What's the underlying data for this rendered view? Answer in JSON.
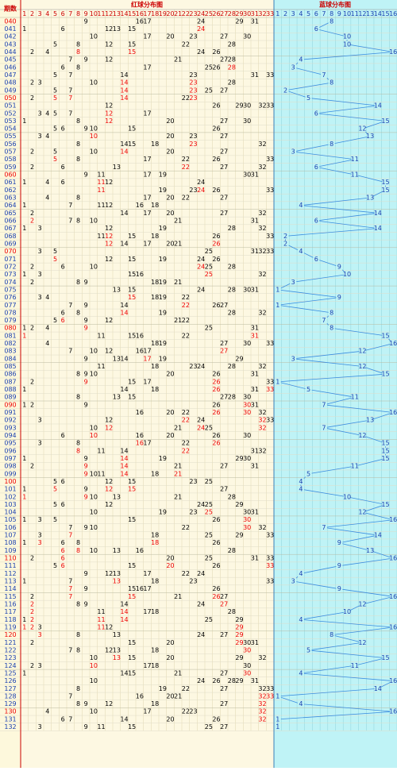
{
  "header": {
    "period_label": "期数",
    "red_title": "红球分布图",
    "blue_title": "蓝球分布图",
    "red_columns": [
      1,
      2,
      3,
      4,
      5,
      6,
      7,
      8,
      9,
      10,
      11,
      12,
      13,
      14,
      15,
      16,
      17,
      18,
      19,
      20,
      21,
      22,
      23,
      24,
      25,
      26,
      27,
      28,
      29,
      30,
      31,
      32,
      33
    ],
    "blue_columns": [
      1,
      2,
      3,
      4,
      5,
      6,
      7,
      8,
      9,
      10,
      11,
      12,
      13,
      14,
      15,
      16
    ]
  },
  "draws": [
    {
      "period": "040",
      "red": [
        9,
        16,
        17,
        24,
        29,
        31
      ],
      "blue": 8
    },
    {
      "period": "041",
      "red": [
        1,
        6,
        12,
        13,
        15,
        24
      ],
      "blue": 6
    },
    {
      "period": "042",
      "red": [
        10,
        17,
        20,
        23,
        27,
        30
      ],
      "blue": 10
    },
    {
      "period": "043",
      "red": [
        5,
        8,
        12,
        15,
        22,
        28
      ],
      "blue": 10
    },
    {
      "period": "044",
      "red": [
        2,
        4,
        8,
        15,
        24,
        26
      ],
      "blue": 16
    },
    {
      "period": "045",
      "red": [
        7,
        9,
        12,
        21,
        27,
        28
      ],
      "blue": 4
    },
    {
      "period": "046",
      "red": [
        6,
        8,
        17,
        25,
        26,
        28
      ],
      "blue": 3
    },
    {
      "period": "047",
      "red": [
        5,
        7,
        14,
        23,
        31,
        33
      ],
      "blue": 7
    },
    {
      "period": "048",
      "red": [
        2,
        3,
        10,
        14,
        23,
        28
      ],
      "blue": 8
    },
    {
      "period": "049",
      "red": [
        5,
        7,
        14,
        23,
        25,
        27
      ],
      "blue": 2
    },
    {
      "period": "050",
      "red": [
        2,
        5,
        7,
        14,
        22,
        23
      ],
      "blue": 5
    },
    {
      "period": "051",
      "red": [
        12,
        26,
        29,
        30,
        32,
        33
      ],
      "blue": 14
    },
    {
      "period": "052",
      "red": [
        3,
        4,
        5,
        7,
        12,
        17
      ],
      "blue": 6
    },
    {
      "period": "053",
      "red": [
        1,
        8,
        12,
        20,
        27,
        30
      ],
      "blue": 15
    },
    {
      "period": "054",
      "red": [
        5,
        6,
        9,
        10,
        15,
        26
      ],
      "blue": 12
    },
    {
      "period": "055",
      "red": [
        3,
        4,
        10,
        20,
        23,
        27
      ],
      "blue": 13
    },
    {
      "period": "056",
      "red": [
        8,
        14,
        15,
        18,
        23,
        32
      ],
      "blue": 8
    },
    {
      "period": "057",
      "red": [
        2,
        5,
        10,
        14,
        20,
        27
      ],
      "blue": 3
    },
    {
      "period": "058",
      "red": [
        5,
        8,
        17,
        22,
        26,
        33
      ],
      "blue": 11
    },
    {
      "period": "059",
      "red": [
        2,
        6,
        13,
        22,
        27,
        32
      ],
      "blue": 6
    },
    {
      "period": "060",
      "red": [
        9,
        11,
        17,
        19,
        30,
        31
      ],
      "blue": 11
    },
    {
      "period": "061",
      "red": [
        1,
        4,
        6,
        11,
        12,
        24
      ],
      "blue": 15
    },
    {
      "period": "062",
      "red": [
        11,
        19,
        23,
        24,
        26,
        33
      ],
      "blue": 15
    },
    {
      "period": "063",
      "red": [
        4,
        8,
        17,
        20,
        22,
        27
      ],
      "blue": 13
    },
    {
      "period": "064",
      "red": [
        1,
        7,
        11,
        12,
        16,
        18
      ],
      "blue": 4
    },
    {
      "period": "065",
      "red": [
        2,
        14,
        17,
        20,
        27,
        32
      ],
      "blue": 14
    },
    {
      "period": "066",
      "red": [
        2,
        7,
        8,
        10,
        21,
        31
      ],
      "blue": 6
    },
    {
      "period": "067",
      "red": [
        1,
        3,
        12,
        19,
        28,
        32
      ],
      "blue": 14
    },
    {
      "period": "068",
      "red": [
        11,
        12,
        15,
        18,
        26,
        33
      ],
      "blue": 2
    },
    {
      "period": "069",
      "red": [
        12,
        14,
        17,
        20,
        21,
        26
      ],
      "blue": 2
    },
    {
      "period": "070",
      "red": [
        3,
        5,
        25,
        31,
        32,
        33
      ],
      "blue": 4
    },
    {
      "period": "071",
      "red": [
        5,
        12,
        15,
        19,
        24,
        26
      ],
      "blue": 6
    },
    {
      "period": "072",
      "red": [
        2,
        6,
        10,
        24,
        25,
        28
      ],
      "blue": 9
    },
    {
      "period": "073",
      "red": [
        1,
        3,
        15,
        16,
        25,
        32
      ],
      "blue": 10
    },
    {
      "period": "074",
      "red": [
        2,
        8,
        9,
        18,
        19,
        21
      ],
      "blue": 3
    },
    {
      "period": "075",
      "red": [
        13,
        15,
        24,
        28,
        30,
        31
      ],
      "blue": 1
    },
    {
      "period": "076",
      "red": [
        3,
        4,
        15,
        18,
        19,
        22
      ],
      "blue": 9
    },
    {
      "period": "077",
      "red": [
        7,
        9,
        14,
        22,
        26,
        27
      ],
      "blue": 1
    },
    {
      "period": "078",
      "red": [
        6,
        8,
        14,
        19,
        28,
        32
      ],
      "blue": 8
    },
    {
      "period": "079",
      "red": [
        5,
        6,
        9,
        12,
        21,
        22
      ],
      "blue": 7
    },
    {
      "period": "080",
      "red": [
        1,
        2,
        4,
        9,
        25,
        31
      ],
      "blue": 8
    },
    {
      "period": "081",
      "red": [
        1,
        11,
        15,
        16,
        22,
        31
      ],
      "blue": 15
    },
    {
      "period": "082",
      "red": [
        4,
        18,
        19,
        27,
        30,
        33
      ],
      "blue": 16
    },
    {
      "period": "083",
      "red": [
        7,
        10,
        12,
        16,
        17,
        27
      ],
      "blue": 12
    },
    {
      "period": "084",
      "red": [
        9,
        13,
        14,
        17,
        19,
        29
      ],
      "blue": 3
    },
    {
      "period": "085",
      "red": [
        11,
        18,
        23,
        24,
        28,
        32
      ],
      "blue": 12
    },
    {
      "period": "086",
      "red": [
        8,
        9,
        10,
        20,
        26,
        31
      ],
      "blue": 15
    },
    {
      "period": "087",
      "red": [
        2,
        9,
        15,
        17,
        26,
        33
      ],
      "blue": 1
    },
    {
      "period": "088",
      "red": [
        1,
        14,
        18,
        26,
        31,
        33
      ],
      "blue": 5
    },
    {
      "period": "089",
      "red": [
        8,
        13,
        15,
        27,
        28,
        30
      ],
      "blue": 11
    },
    {
      "period": "090",
      "red": [
        1,
        2,
        9,
        26,
        30,
        31
      ],
      "blue": 7
    },
    {
      "period": "091",
      "red": [
        16,
        20,
        22,
        26,
        30,
        32
      ],
      "blue": 16
    },
    {
      "period": "092",
      "red": [
        3,
        12,
        22,
        24,
        32,
        33
      ],
      "blue": 13
    },
    {
      "period": "093",
      "red": [
        10,
        12,
        21,
        24,
        25,
        32
      ],
      "blue": 7
    },
    {
      "period": "094",
      "red": [
        6,
        10,
        16,
        20,
        26,
        30
      ],
      "blue": 12
    },
    {
      "period": "095",
      "red": [
        3,
        8,
        16,
        17,
        22,
        26
      ],
      "blue": 15
    },
    {
      "period": "096",
      "red": [
        8,
        11,
        14,
        22,
        31,
        32
      ],
      "blue": 15
    },
    {
      "period": "097",
      "red": [
        1,
        9,
        14,
        19,
        29,
        30
      ],
      "blue": 15
    },
    {
      "period": "098",
      "red": [
        2,
        9,
        14,
        21,
        27,
        31
      ],
      "blue": 11
    },
    {
      "period": "099",
      "red": [
        9,
        10,
        11,
        14,
        18,
        21
      ],
      "blue": 5
    },
    {
      "period": "100",
      "red": [
        5,
        6,
        12,
        15,
        23,
        25
      ],
      "blue": 4
    },
    {
      "period": "101",
      "red": [
        1,
        5,
        9,
        12,
        15,
        27
      ],
      "blue": 4
    },
    {
      "period": "102",
      "red": [
        1,
        9,
        10,
        13,
        21,
        28
      ],
      "blue": 10
    },
    {
      "period": "103",
      "red": [
        5,
        6,
        12,
        24,
        25,
        29
      ],
      "blue": 15
    },
    {
      "period": "104",
      "red": [
        10,
        19,
        23,
        25,
        30,
        31
      ],
      "blue": 12
    },
    {
      "period": "105",
      "red": [
        1,
        3,
        5,
        15,
        26,
        30
      ],
      "blue": 16
    },
    {
      "period": "106",
      "red": [
        7,
        9,
        10,
        22,
        30,
        32
      ],
      "blue": 7
    },
    {
      "period": "107",
      "red": [
        3,
        7,
        18,
        25,
        29,
        33
      ],
      "blue": 14
    },
    {
      "period": "108",
      "red": [
        1,
        3,
        6,
        8,
        18,
        26
      ],
      "blue": 9
    },
    {
      "period": "109",
      "red": [
        6,
        8,
        10,
        13,
        16,
        28
      ],
      "blue": 13
    },
    {
      "period": "110",
      "red": [
        2,
        6,
        20,
        25,
        31,
        33
      ],
      "blue": 16
    },
    {
      "period": "111",
      "red": [
        5,
        6,
        15,
        20,
        26,
        33
      ],
      "blue": 9
    },
    {
      "period": "112",
      "red": [
        9,
        12,
        13,
        17,
        22,
        24
      ],
      "blue": 4
    },
    {
      "period": "113",
      "red": [
        1,
        7,
        13,
        18,
        23,
        33
      ],
      "blue": 3
    },
    {
      "period": "114",
      "red": [
        7,
        9,
        15,
        16,
        17,
        26
      ],
      "blue": 9
    },
    {
      "period": "115",
      "red": [
        2,
        7,
        15,
        21,
        26,
        27
      ],
      "blue": 16
    },
    {
      "period": "116",
      "red": [
        2,
        8,
        9,
        14,
        24,
        27
      ],
      "blue": 12
    },
    {
      "period": "117",
      "red": [
        2,
        11,
        14,
        17,
        18,
        28
      ],
      "blue": 10
    },
    {
      "period": "118",
      "red": [
        1,
        2,
        11,
        14,
        25,
        29
      ],
      "blue": 4
    },
    {
      "period": "119",
      "red": [
        1,
        2,
        3,
        11,
        12,
        29
      ],
      "blue": 16
    },
    {
      "period": "120",
      "red": [
        3,
        8,
        13,
        24,
        27,
        29
      ],
      "blue": 8
    },
    {
      "period": "121",
      "red": [
        2,
        15,
        20,
        29,
        30,
        31
      ],
      "blue": 12
    },
    {
      "period": "122",
      "red": [
        7,
        8,
        12,
        13,
        18,
        30
      ],
      "blue": 5
    },
    {
      "period": "123",
      "red": [
        10,
        13,
        15,
        20,
        29,
        32
      ],
      "blue": 15
    },
    {
      "period": "124",
      "red": [
        2,
        3,
        10,
        17,
        18,
        30
      ],
      "blue": 11
    },
    {
      "period": "125",
      "red": [
        1,
        14,
        15,
        21,
        27,
        30
      ],
      "blue": 4
    },
    {
      "period": "126",
      "red": [
        10,
        24,
        26,
        28,
        29,
        31
      ],
      "blue": 16
    },
    {
      "period": "127",
      "red": [
        8,
        19,
        22,
        27,
        32,
        33
      ],
      "blue": 14
    },
    {
      "period": "128",
      "red": [
        7,
        16,
        20,
        21,
        32,
        33
      ],
      "blue": 1
    },
    {
      "period": "129",
      "red": [
        8,
        9,
        12,
        18,
        27,
        32
      ],
      "blue": 4
    },
    {
      "period": "130",
      "red": [
        4,
        10,
        17,
        22,
        23,
        32
      ],
      "blue": 16
    },
    {
      "period": "131",
      "red": [
        6,
        7,
        14,
        20,
        26,
        32
      ],
      "blue": 1
    },
    {
      "period": "132",
      "red": [
        3,
        9,
        11,
        15,
        25,
        27
      ],
      "blue": 1
    }
  ]
}
